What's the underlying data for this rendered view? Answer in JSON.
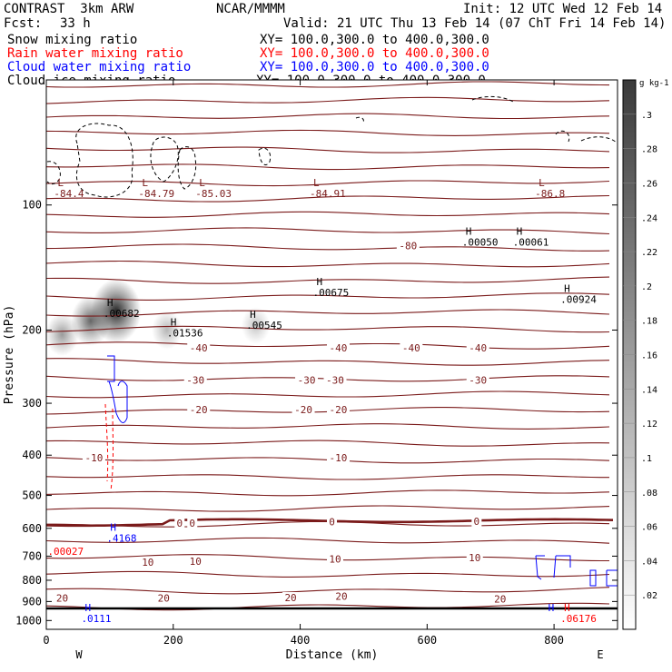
{
  "header": {
    "title": "CONTRAST  3km ARW",
    "center": "NCAR/MMMM",
    "init": "Init: 12 UTC Wed 12 Feb 14",
    "fcst_label": "Fcst:",
    "fcst_value": "33 h",
    "valid": "Valid: 21 UTC Thu 13 Feb 14 (07 ChT Fri 14 Feb 14)"
  },
  "fields": [
    {
      "label": "Snow mixing ratio",
      "xy": "XY= 100.0,300.0 to 400.0,300.0",
      "color": "#000000"
    },
    {
      "label": "Rain water mixing ratio",
      "xy": "XY= 100.0,300.0 to 400.0,300.0",
      "color": "#ff0000"
    },
    {
      "label": "Cloud water mixing ratio",
      "xy": "XY= 100.0,300.0 to 400.0,300.0",
      "color": "#0000ff"
    },
    {
      "label": "Cloud ice mixing ratio",
      "xy": "XY= 100.0,300.0 to 400.0,300.0",
      "color": "#000000"
    }
  ],
  "colors": {
    "temperature": "#7a1a1a",
    "rain": "#ff0000",
    "cloud_water": "#0000ff",
    "snow": "#000000"
  },
  "chart_data": {
    "type": "cross-section",
    "xlabel": "Distance (km)",
    "ylabel": "Pressure (hPa)",
    "xlim": [
      0,
      900
    ],
    "ylim": [
      1050,
      50
    ],
    "y_log_scale": true,
    "x_ticks": [
      0,
      200,
      400,
      600,
      800
    ],
    "y_ticks": [
      100,
      200,
      300,
      400,
      500,
      600,
      700,
      800,
      900,
      1000
    ],
    "endpoints": {
      "left": "W",
      "right": "E"
    },
    "colorbar": {
      "unit": "g kg-1",
      "ticks": [
        ".02",
        ".04",
        ".06",
        ".08",
        ".1",
        ".12",
        ".14",
        ".16",
        ".18",
        ".2",
        ".22",
        ".24",
        ".26",
        ".28",
        ".3"
      ],
      "min": 0,
      "max": 0.32
    },
    "temperature_contours": [
      {
        "label": "-80",
        "pressure": 125
      },
      {
        "label": "-40",
        "pressure": 222
      },
      {
        "label": "-30",
        "pressure": 265
      },
      {
        "label": "-20",
        "pressure": 310
      },
      {
        "label": "-10",
        "pressure": 405
      },
      {
        "label": "0",
        "pressure": 575
      },
      {
        "label": "10",
        "pressure": 705
      },
      {
        "label": "20",
        "pressure": 880
      }
    ],
    "contour_labels": [
      {
        "text": "-80",
        "x": 570,
        "p": 126
      },
      {
        "text": "-40",
        "x": 240,
        "p": 222
      },
      {
        "text": "-40",
        "x": 460,
        "p": 222
      },
      {
        "text": "-40",
        "x": 575,
        "p": 222
      },
      {
        "text": "-40",
        "x": 680,
        "p": 222
      },
      {
        "text": "-30",
        "x": 235,
        "p": 265
      },
      {
        "text": "-30",
        "x": 410,
        "p": 265
      },
      {
        "text": "-30",
        "x": 455,
        "p": 265
      },
      {
        "text": "-30",
        "x": 680,
        "p": 265
      },
      {
        "text": "-20",
        "x": 240,
        "p": 312
      },
      {
        "text": "-20",
        "x": 405,
        "p": 312
      },
      {
        "text": "-20",
        "x": 460,
        "p": 312
      },
      {
        "text": "-10",
        "x": 75,
        "p": 408
      },
      {
        "text": "-10",
        "x": 460,
        "p": 408
      },
      {
        "text": "0",
        "x": 210,
        "p": 585
      },
      {
        "text": "0",
        "x": 230,
        "p": 585
      },
      {
        "text": "0",
        "x": 450,
        "p": 581
      },
      {
        "text": "0",
        "x": 678,
        "p": 580
      },
      {
        "text": "10",
        "x": 160,
        "p": 727
      },
      {
        "text": "10",
        "x": 235,
        "p": 723
      },
      {
        "text": "10",
        "x": 455,
        "p": 715
      },
      {
        "text": "10",
        "x": 675,
        "p": 710
      },
      {
        "text": "20",
        "x": 25,
        "p": 888
      },
      {
        "text": "20",
        "x": 185,
        "p": 888
      },
      {
        "text": "20",
        "x": 385,
        "p": 885
      },
      {
        "text": "20",
        "x": 465,
        "p": 878
      },
      {
        "text": "20",
        "x": 715,
        "p": 892
      }
    ],
    "extrema": [
      {
        "type": "L",
        "value": "-84.4",
        "x": 12,
        "p": 90,
        "color": "#7a1a1a"
      },
      {
        "type": "L",
        "value": "-84.79",
        "x": 145,
        "p": 90,
        "color": "#7a1a1a"
      },
      {
        "type": "L",
        "value": "-85.03",
        "x": 235,
        "p": 90,
        "color": "#7a1a1a"
      },
      {
        "type": "L",
        "value": "-84.91",
        "x": 415,
        "p": 90,
        "color": "#7a1a1a"
      },
      {
        "type": "L",
        "value": "-86.8",
        "x": 770,
        "p": 90,
        "color": "#7a1a1a"
      },
      {
        "type": "H",
        "value": ".00682",
        "x": 90,
        "p": 175,
        "color": "#000000"
      },
      {
        "type": "H",
        "value": ".01536",
        "x": 190,
        "p": 195,
        "color": "#000000"
      },
      {
        "type": "H",
        "value": ".00545",
        "x": 315,
        "p": 187,
        "color": "#000000"
      },
      {
        "type": "H",
        "value": ".00675",
        "x": 420,
        "p": 156,
        "color": "#000000"
      },
      {
        "type": "H",
        "value": ".00050",
        "x": 655,
        "p": 118,
        "color": "#000000"
      },
      {
        "type": "H",
        "value": ".00061",
        "x": 735,
        "p": 118,
        "color": "#000000"
      },
      {
        "type": "H",
        "value": ".00924",
        "x": 810,
        "p": 162,
        "color": "#000000"
      },
      {
        "type": "H",
        "value": ".4168",
        "x": 95,
        "p": 608,
        "color": "#0000ff"
      },
      {
        "type": "H",
        "value": ".0111",
        "x": 55,
        "p": 950,
        "color": "#0000ff"
      },
      {
        "type": "H",
        "value": "",
        "x": 785,
        "p": 950,
        "color": "#0000ff"
      },
      {
        "type": "H",
        "value": ".06176",
        "x": 810,
        "p": 950,
        "color": "#ff0000"
      },
      {
        "type": "",
        "value": ".00027",
        "x": 2,
        "p": 655,
        "color": "#ff0000"
      }
    ],
    "snow_shading": [
      {
        "x": 110,
        "p": 180,
        "max": 0.32
      },
      {
        "x": 70,
        "p": 190,
        "max": 0.18
      },
      {
        "x": 25,
        "p": 205,
        "max": 0.1
      },
      {
        "x": 190,
        "p": 200,
        "max": 0.06
      },
      {
        "x": 330,
        "p": 195,
        "max": 0.04
      }
    ]
  }
}
